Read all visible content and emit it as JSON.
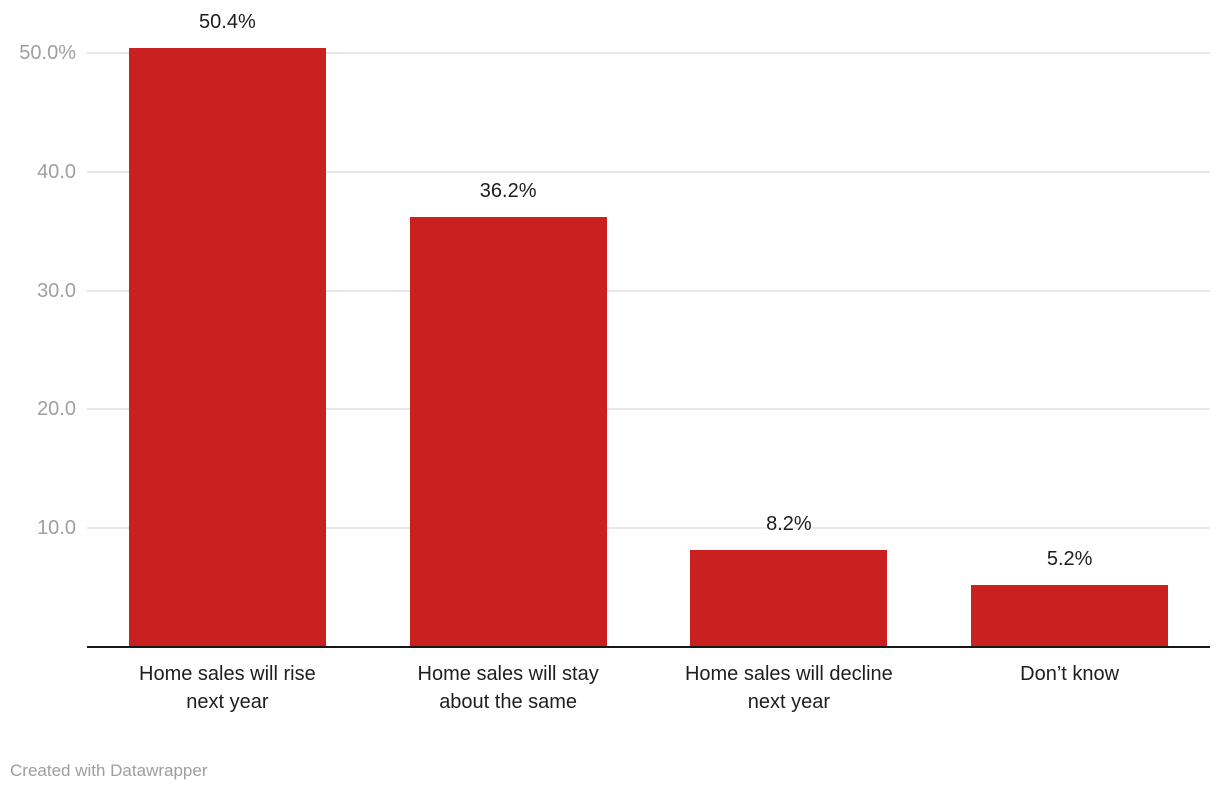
{
  "footer": {
    "attribution": "Created with Datawrapper"
  },
  "chart_data": {
    "type": "bar",
    "title": "",
    "xlabel": "",
    "ylabel": "",
    "categories": [
      "Home sales will rise next year",
      "Home sales will stay about the same",
      "Home sales will decline next year",
      "Don’t know"
    ],
    "category_lines": [
      [
        "Home sales will rise",
        "next year"
      ],
      [
        "Home sales will stay",
        "about the same"
      ],
      [
        "Home sales will decline",
        "next year"
      ],
      [
        "Don’t know"
      ]
    ],
    "values": [
      50.4,
      36.2,
      8.2,
      5.2
    ],
    "value_labels": [
      "50.4%",
      "36.2%",
      "8.2%",
      "5.2%"
    ],
    "unit": "%",
    "ylim": [
      0,
      52
    ],
    "y_ticks": [
      {
        "label": "50.0%",
        "value": 50
      },
      {
        "label": "40.0",
        "value": 40
      },
      {
        "label": "30.0",
        "value": 30
      },
      {
        "label": "20.0",
        "value": 20
      },
      {
        "label": "10.0",
        "value": 10
      }
    ],
    "grid": "horizontal",
    "legend": "none",
    "colors": {
      "bar": "#c8211f",
      "gridline": "#e8e8e8",
      "axis_tick_text": "#a0a0a0",
      "value_label_text": "#1d1d1d",
      "category_label_text": "#1e1e1e",
      "baseline": "#18181a",
      "attribution_text": "#9e9e9e",
      "background": "#ffffff"
    }
  }
}
